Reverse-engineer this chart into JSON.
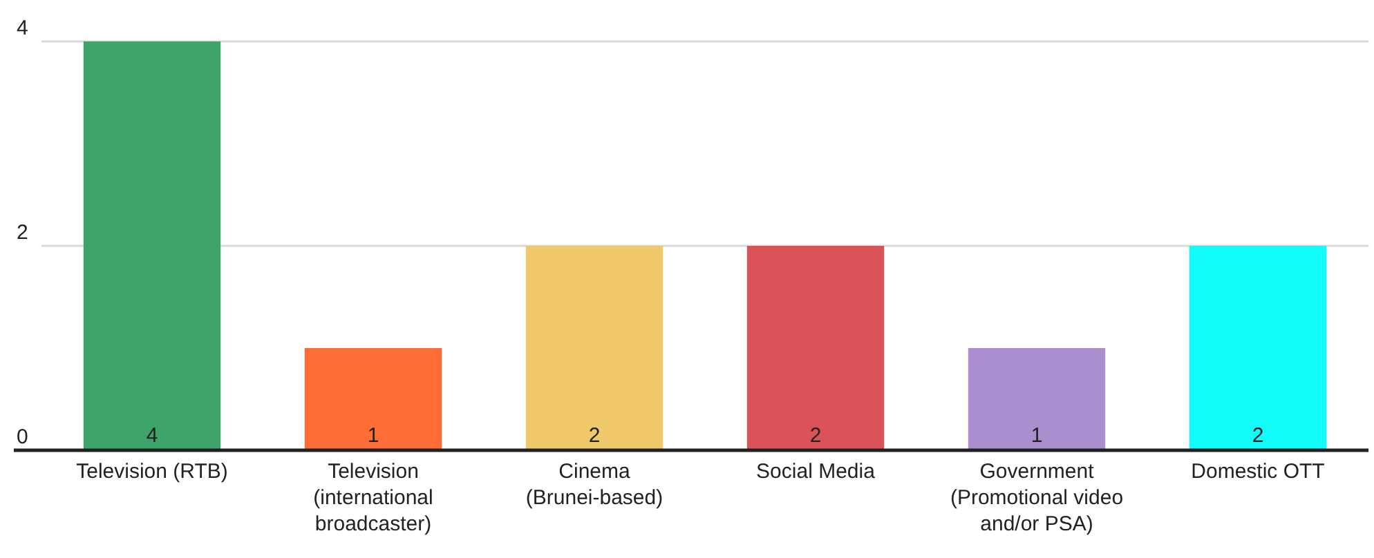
{
  "chart_data": {
    "type": "bar",
    "categories": [
      "Television (RTB)",
      "Television (international broadcaster)",
      "Cinema (Brunei-based)",
      "Social Media",
      "Government (Promotional video and/or PSA)",
      "Domestic OTT"
    ],
    "values": [
      4,
      1,
      2,
      2,
      1,
      2
    ],
    "colors": [
      "#3fa46a",
      "#ff6d37",
      "#f0c96a",
      "#dc5259",
      "#a98fcd",
      "#12fcf9"
    ],
    "ylim": [
      0,
      4
    ],
    "yticks": [
      0,
      2,
      4
    ],
    "grid": "y",
    "data_labels": true
  }
}
